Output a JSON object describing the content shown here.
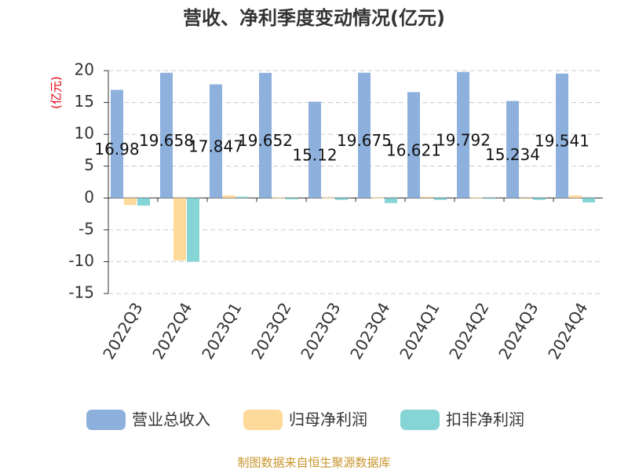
{
  "chart_data": {
    "type": "bar",
    "title": "营收、净利季度变动情况(亿元)",
    "y_label": "(亿元)",
    "categories": [
      "2022Q3",
      "2022Q4",
      "2023Q1",
      "2023Q2",
      "2023Q3",
      "2023Q4",
      "2024Q1",
      "2024Q2",
      "2024Q3",
      "2024Q4"
    ],
    "series": [
      {
        "name": "营业总收入",
        "color": "#8eb0dc",
        "values": [
          16.98,
          19.658,
          17.847,
          19.652,
          15.12,
          19.675,
          16.621,
          19.792,
          15.234,
          19.541
        ]
      },
      {
        "name": "归母净利润",
        "color": "#fdd99a",
        "values": [
          -1.1,
          -9.8,
          0.4,
          0.1,
          0.05,
          0.05,
          0.2,
          0.1,
          -0.1,
          0.4
        ]
      },
      {
        "name": "扣非净利润",
        "color": "#86d5d6",
        "values": [
          -1.2,
          -10,
          0.2,
          -0.2,
          -0.3,
          -0.8,
          -0.3,
          -0.1,
          -0.3,
          -0.7
        ]
      }
    ],
    "ylim": [
      -15,
      20
    ],
    "yticks": [
      -15,
      -10,
      -5,
      0,
      5,
      10,
      15,
      20
    ],
    "grid": true,
    "source": "制图数据来自恒生聚源数据库"
  }
}
